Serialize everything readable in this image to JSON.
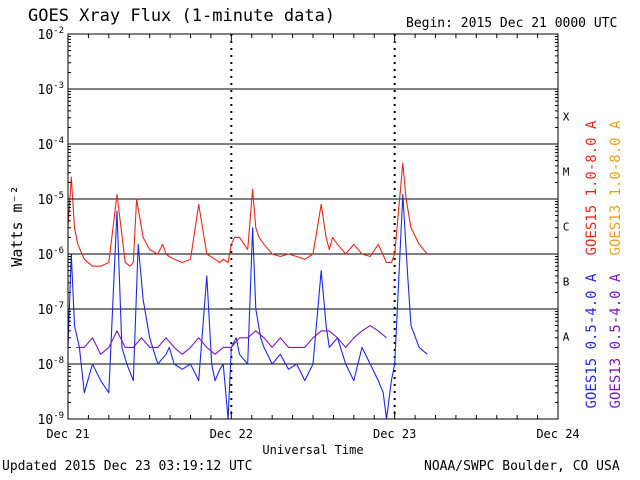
{
  "header": {
    "title": "GOES Xray Flux (1-minute data)",
    "begin": "Begin:  2015 Dec 21 0000 UTC"
  },
  "footer": {
    "updated": "Updated 2015 Dec 23 03:19:12 UTC",
    "credit": "NOAA/SWPC Boulder, CO USA"
  },
  "colors": {
    "goes15_long": "#e8281e",
    "goes13_long": "#e8a020",
    "goes15_short": "#1e28e8",
    "goes13_short": "#7a18b8"
  },
  "chart_data": {
    "type": "line",
    "y_scale": "log",
    "ylim": [
      1e-09,
      0.01
    ],
    "xlim": [
      "Dec 21",
      "Dec 24"
    ],
    "xlabel": "Universal Time",
    "ylabel": "Watts m⁻²",
    "x_ticks": [
      "Dec 21",
      "Dec 22",
      "Dec 23",
      "Dec 24"
    ],
    "y_ticks": [
      {
        "base": "10",
        "exp": "-9",
        "value": 1e-09
      },
      {
        "base": "10",
        "exp": "-8",
        "value": 1e-08
      },
      {
        "base": "10",
        "exp": "-7",
        "value": 1e-07
      },
      {
        "base": "10",
        "exp": "-6",
        "value": 1e-06
      },
      {
        "base": "10",
        "exp": "-5",
        "value": 1e-05
      },
      {
        "base": "10",
        "exp": "-4",
        "value": 0.0001
      },
      {
        "base": "10",
        "exp": "-3",
        "value": 0.001
      },
      {
        "base": "10",
        "exp": "-2",
        "value": 0.01
      }
    ],
    "flare_classes": [
      {
        "label": "A",
        "value": 1e-08
      },
      {
        "label": "B",
        "value": 1e-07
      },
      {
        "label": "C",
        "value": 1e-06
      },
      {
        "label": "M",
        "value": 1e-05
      },
      {
        "label": "X",
        "value": 0.0001
      }
    ],
    "grid": "horizontal lines at each decade from 1e-8 to 1e-3",
    "legend": [
      {
        "label": "GOES15 1.0-8.0 A",
        "color": "#e8281e"
      },
      {
        "label": "GOES13 1.0-8.0 A",
        "color": "#e8a020"
      },
      {
        "label": "GOES15 0.5-4.0 A",
        "color": "#1e28e8"
      },
      {
        "label": "GOES13 0.5-4.0 A",
        "color": "#7a18b8"
      }
    ],
    "series": [
      {
        "name": "GOES15 1.0-8.0 A",
        "color": "#e8281e",
        "x_days": [
          0,
          0.02,
          0.04,
          0.06,
          0.1,
          0.15,
          0.2,
          0.25,
          0.3,
          0.35,
          0.38,
          0.4,
          0.42,
          0.46,
          0.5,
          0.55,
          0.58,
          0.6,
          0.62,
          0.65,
          0.7,
          0.75,
          0.8,
          0.85,
          0.9,
          0.93,
          0.95,
          0.98,
          1.0,
          1.02,
          1.05,
          1.1,
          1.13,
          1.15,
          1.17,
          1.2,
          1.25,
          1.3,
          1.35,
          1.4,
          1.45,
          1.5,
          1.55,
          1.58,
          1.6,
          1.62,
          1.65,
          1.7,
          1.75,
          1.8,
          1.85,
          1.9,
          1.95,
          1.98,
          2.0,
          2.05,
          2.07,
          2.1,
          2.15,
          2.2
        ],
        "y": [
          3e-06,
          2.5e-05,
          3e-06,
          1.5e-06,
          8e-07,
          6e-07,
          6e-07,
          7e-07,
          1.2e-05,
          7e-07,
          6e-07,
          7e-07,
          1e-05,
          2e-06,
          1.2e-06,
          1e-06,
          1.5e-06,
          1e-06,
          9e-07,
          8e-07,
          7e-07,
          8e-07,
          8e-06,
          1e-06,
          8e-07,
          7e-07,
          8e-07,
          7e-07,
          1.5e-06,
          2e-06,
          2e-06,
          1.2e-06,
          1.5e-05,
          3e-06,
          2e-06,
          1.5e-06,
          1e-06,
          9e-07,
          1e-06,
          9e-07,
          8e-07,
          1e-06,
          8e-06,
          2e-06,
          1.2e-06,
          2e-06,
          1.5e-06,
          1e-06,
          1.5e-06,
          1e-06,
          9e-07,
          1.5e-06,
          7e-07,
          7e-07,
          1e-06,
          4.5e-05,
          1e-05,
          3e-06,
          1.5e-06,
          1e-06
        ]
      },
      {
        "name": "GOES15 0.5-4.0 A",
        "color": "#1e28e8",
        "x_days": [
          0,
          0.02,
          0.04,
          0.07,
          0.1,
          0.15,
          0.2,
          0.25,
          0.3,
          0.33,
          0.36,
          0.4,
          0.43,
          0.46,
          0.5,
          0.55,
          0.6,
          0.62,
          0.65,
          0.7,
          0.75,
          0.8,
          0.85,
          0.88,
          0.9,
          0.93,
          0.95,
          0.98,
          1.0,
          1.03,
          1.05,
          1.1,
          1.13,
          1.15,
          1.18,
          1.2,
          1.25,
          1.3,
          1.35,
          1.4,
          1.45,
          1.5,
          1.55,
          1.58,
          1.6,
          1.65,
          1.7,
          1.75,
          1.8,
          1.85,
          1.9,
          1.93,
          1.95,
          1.98,
          2.0,
          2.05,
          2.08,
          2.1,
          2.15,
          2.2
        ],
        "y": [
          2e-08,
          1e-06,
          5e-08,
          2e-08,
          3e-09,
          1e-08,
          5e-09,
          3e-09,
          6e-06,
          2e-08,
          1e-08,
          5e-09,
          1.5e-06,
          1.5e-07,
          3e-08,
          1e-08,
          1.5e-08,
          2e-08,
          1e-08,
          8e-09,
          1e-08,
          5e-09,
          4e-07,
          1e-08,
          5e-09,
          8e-09,
          1e-08,
          1e-09,
          2e-08,
          3e-08,
          1.5e-08,
          1e-08,
          3e-06,
          1e-07,
          3e-08,
          2e-08,
          1e-08,
          1.5e-08,
          8e-09,
          1e-08,
          5e-09,
          1e-08,
          5e-07,
          5e-08,
          2e-08,
          3e-08,
          1e-08,
          5e-09,
          2e-08,
          1e-08,
          5e-09,
          3e-09,
          1e-09,
          5e-09,
          1e-08,
          1.2e-05,
          4e-07,
          5e-08,
          2e-08,
          1.5e-08
        ]
      },
      {
        "name": "GOES13 0.5-4.0 A",
        "color": "#7a18b8",
        "x_days": [
          0.05,
          0.1,
          0.15,
          0.2,
          0.25,
          0.3,
          0.35,
          0.4,
          0.45,
          0.5,
          0.55,
          0.6,
          0.65,
          0.7,
          0.75,
          0.8,
          0.85,
          0.9,
          0.95,
          1.0,
          1.05,
          1.1,
          1.15,
          1.2,
          1.25,
          1.3,
          1.35,
          1.4,
          1.45,
          1.5,
          1.55,
          1.6,
          1.65,
          1.7,
          1.75,
          1.8,
          1.85,
          1.9,
          1.95
        ],
        "y": [
          2e-08,
          2e-08,
          3e-08,
          1.5e-08,
          2e-08,
          4e-08,
          2e-08,
          2e-08,
          3e-08,
          2e-08,
          2e-08,
          3e-08,
          2e-08,
          1.5e-08,
          2e-08,
          3e-08,
          2e-08,
          1.5e-08,
          2e-08,
          2e-08,
          3e-08,
          3e-08,
          4e-08,
          3e-08,
          2e-08,
          3e-08,
          2e-08,
          2e-08,
          2e-08,
          3e-08,
          4e-08,
          4e-08,
          3e-08,
          2e-08,
          3e-08,
          4e-08,
          5e-08,
          4e-08,
          3e-08
        ]
      }
    ]
  }
}
